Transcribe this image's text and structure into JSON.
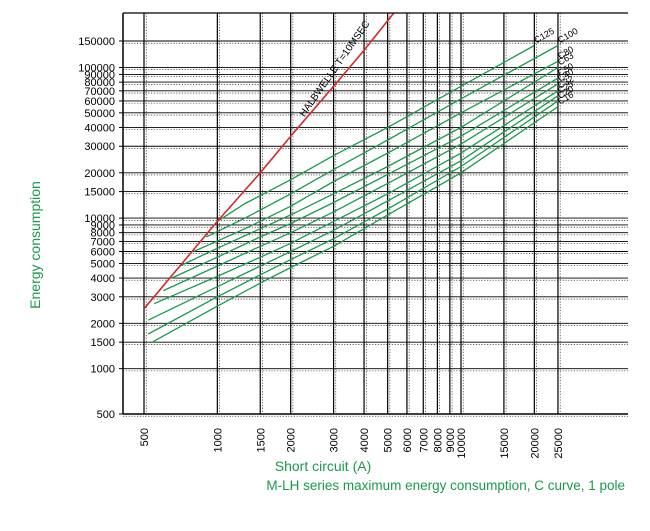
{
  "chart_data": {
    "type": "line",
    "title": "M-LH series maximum energy consumption, C curve, 1 pole",
    "xlabel": "Short circuit (A)",
    "ylabel": "Energy consumption",
    "xscale": "log",
    "yscale": "log",
    "xlim": [
      450,
      40000
    ],
    "ylim": [
      400,
      300000
    ],
    "grid": true,
    "x_ticks": [
      500,
      1000,
      1500,
      2000,
      3000,
      4000,
      5000,
      6000,
      7000,
      8000,
      9000,
      10000,
      15000,
      20000,
      25000
    ],
    "x_tick_labels": [
      "500",
      "1000",
      "1500",
      "2000",
      "3000",
      "4000",
      "5000",
      "6000",
      "7000",
      "8000",
      "9000",
      "10000",
      "15000",
      "20000",
      "25000"
    ],
    "y_ticks": [
      500,
      1000,
      1500,
      2000,
      3000,
      4000,
      5000,
      6000,
      7000,
      8000,
      9000,
      10000,
      15000,
      20000,
      30000,
      40000,
      50000,
      60000,
      70000,
      80000,
      90000,
      100000,
      150000
    ],
    "y_tick_labels": [
      "500",
      "1000",
      "1500",
      "2000",
      "3000",
      "4000",
      "5000",
      "6000",
      "7000",
      "8000",
      "9000",
      "10000",
      "15000",
      "20000",
      "30000",
      "40000",
      "50000",
      "60000",
      "70000",
      "80000",
      "90000",
      "100000",
      "150000"
    ],
    "colors": {
      "series": "#1a9a4a",
      "halbwelle": "#d42a2a",
      "grid": "#000000",
      "axis_label": "#1a9a4a"
    },
    "halbwelle": {
      "label": "HALBWELLE T=10MSEC",
      "x": [
        500,
        1000,
        1500,
        2000,
        3000,
        4000,
        5300
      ],
      "y": [
        2500,
        9500,
        20000,
        35000,
        75000,
        130000,
        230000
      ]
    },
    "series": [
      {
        "name": "C125",
        "x": [
          1000,
          1300,
          2000,
          3000,
          5000,
          10000,
          20000
        ],
        "y": [
          9500,
          12500,
          18000,
          26000,
          40000,
          75000,
          140000
        ]
      },
      {
        "name": "C100",
        "x": [
          900,
          1300,
          2000,
          3000,
          5000,
          10000,
          25000
        ],
        "y": [
          7500,
          10000,
          14500,
          21000,
          33000,
          62000,
          140000
        ]
      },
      {
        "name": "C80",
        "x": [
          800,
          1300,
          2000,
          3000,
          5000,
          10000,
          25000
        ],
        "y": [
          6000,
          8500,
          12000,
          17500,
          27000,
          50000,
          110000
        ]
      },
      {
        "name": "C63",
        "x": [
          700,
          1000,
          1500,
          2000,
          3000,
          5000,
          10000,
          25000
        ],
        "y": [
          4800,
          6300,
          8500,
          10500,
          14500,
          22000,
          40000,
          100000
        ]
      },
      {
        "name": "C50",
        "x": [
          650,
          1000,
          1500,
          2000,
          3000,
          5000,
          10000,
          25000
        ],
        "y": [
          4000,
          5500,
          7500,
          9200,
          12700,
          19500,
          35000,
          85000
        ]
      },
      {
        "name": "C40",
        "x": [
          600,
          1000,
          1500,
          2000,
          3000,
          5000,
          10000,
          25000
        ],
        "y": [
          3300,
          4800,
          6500,
          8000,
          11000,
          17000,
          31000,
          78000
        ]
      },
      {
        "name": "C32",
        "x": [
          550,
          1000,
          1500,
          2000,
          3000,
          5000,
          10000,
          25000
        ],
        "y": [
          2700,
          4100,
          5500,
          6800,
          9500,
          14500,
          27000,
          70000
        ]
      },
      {
        "name": "C25",
        "x": [
          520,
          1000,
          1500,
          2000,
          3000,
          5000,
          10000,
          25000
        ],
        "y": [
          2100,
          3500,
          4800,
          6000,
          8300,
          13000,
          24000,
          65000
        ]
      },
      {
        "name": "C20",
        "x": [
          520,
          1000,
          1500,
          2000,
          3000,
          5000,
          10000,
          25000
        ],
        "y": [
          1700,
          3000,
          4200,
          5300,
          7300,
          11500,
          22000,
          60000
        ]
      },
      {
        "name": "C16",
        "x": [
          540,
          1000,
          1500,
          2000,
          3000,
          5000,
          10000,
          25000
        ],
        "y": [
          1500,
          2600,
          3700,
          4700,
          6500,
          10500,
          20000,
          55000
        ]
      }
    ]
  }
}
